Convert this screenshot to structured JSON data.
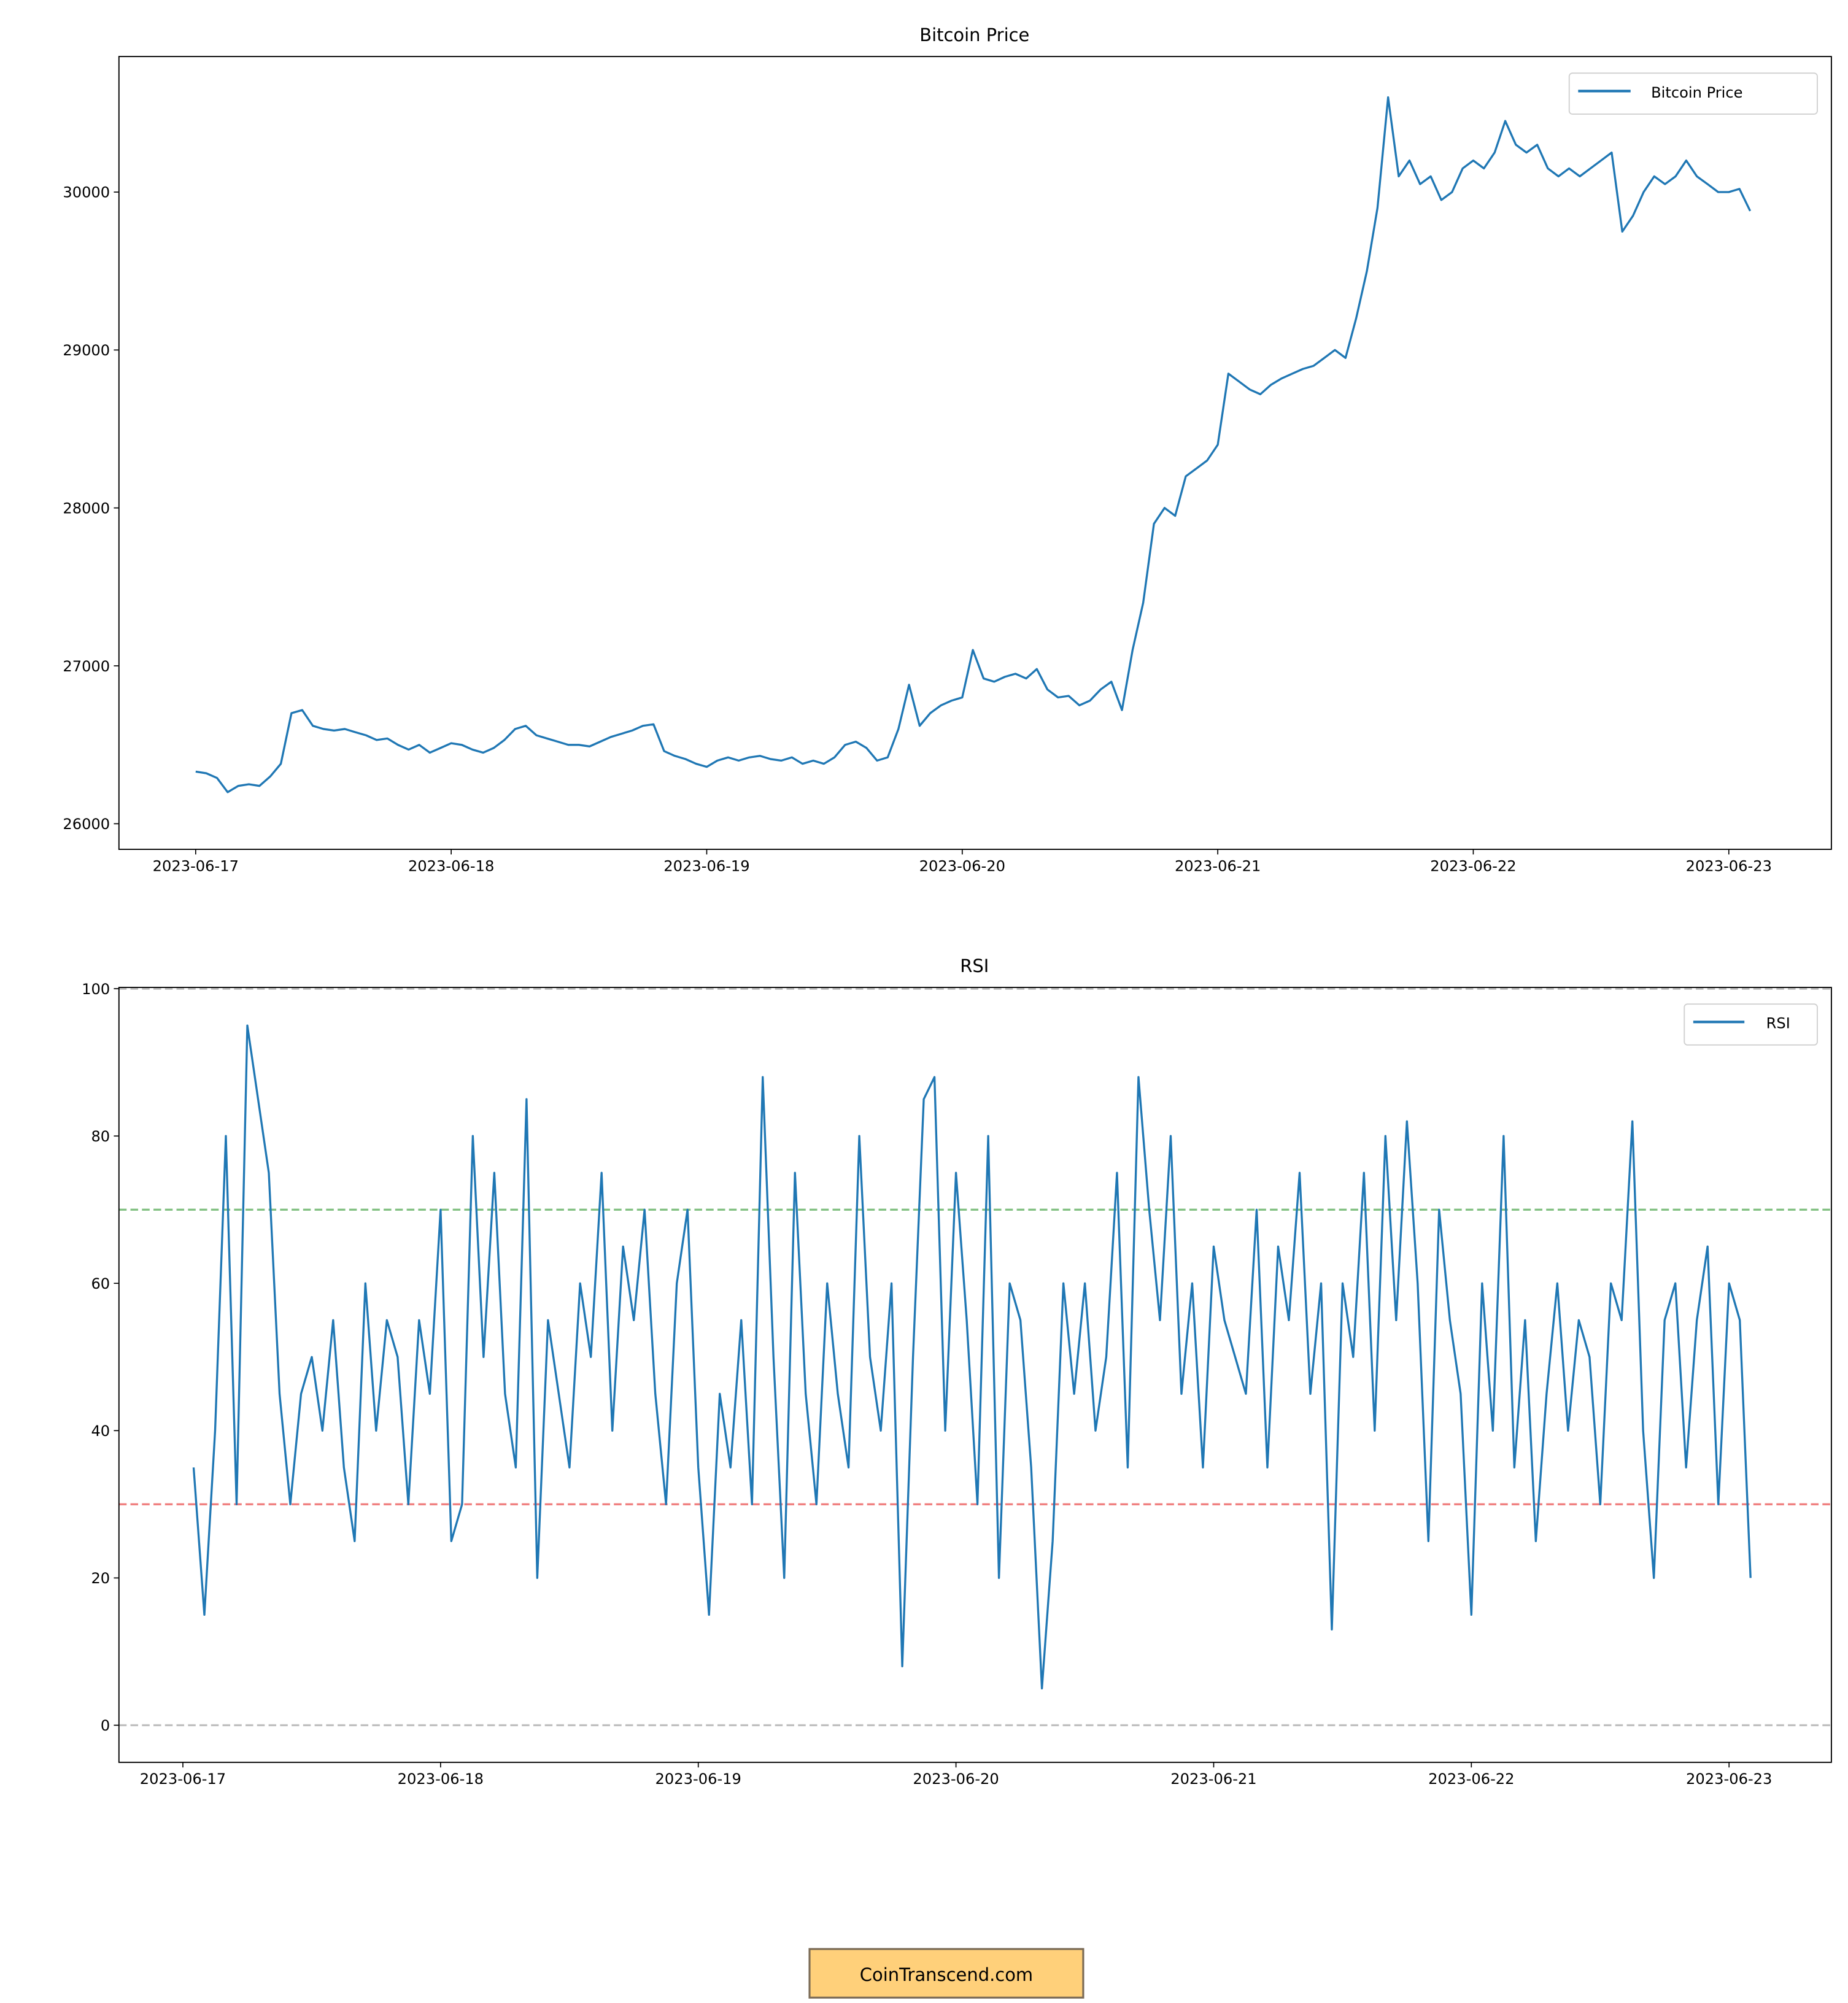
{
  "chart_data": [
    {
      "type": "line",
      "title": "Bitcoin Price",
      "xlabel": "",
      "ylabel": "",
      "x_ticks": [
        "2023-06-17",
        "2023-06-18",
        "2023-06-19",
        "2023-06-20",
        "2023-06-21",
        "2023-06-22",
        "2023-06-23"
      ],
      "y_ticks": [
        "26000",
        "27000",
        "28000",
        "29000",
        "30000"
      ],
      "ylim": [
        25840,
        30860
      ],
      "xlim": [
        "2023-06-16 16:48",
        "2023-06-23 09:36"
      ],
      "grid": false,
      "legend": "top-right",
      "series": [
        {
          "name": "Bitcoin Price",
          "color": "#1f77b4",
          "start": "2023-06-17 00:00",
          "interval": "1h",
          "values": [
            26330,
            26320,
            26290,
            26200,
            26240,
            26250,
            26240,
            26300,
            26380,
            26700,
            26720,
            26620,
            26600,
            26590,
            26600,
            26580,
            26560,
            26530,
            26540,
            26500,
            26470,
            26500,
            26450,
            26480,
            26510,
            26500,
            26470,
            26450,
            26480,
            26530,
            26600,
            26620,
            26560,
            26540,
            26520,
            26500,
            26500,
            26490,
            26520,
            26550,
            26570,
            26590,
            26620,
            26630,
            26460,
            26430,
            26410,
            26380,
            26360,
            26400,
            26420,
            26400,
            26420,
            26430,
            26410,
            26400,
            26420,
            26380,
            26400,
            26380,
            26420,
            26500,
            26520,
            26480,
            26400,
            26420,
            26600,
            26880,
            26620,
            26700,
            26750,
            26780,
            26800,
            27100,
            26920,
            26900,
            26930,
            26950,
            26920,
            26980,
            26850,
            26800,
            26810,
            26750,
            26780,
            26850,
            26900,
            26720,
            27100,
            27400,
            27900,
            28000,
            27950,
            28200,
            28250,
            28300,
            28400,
            28850,
            28800,
            28750,
            28720,
            28780,
            28820,
            28850,
            28880,
            28900,
            28950,
            29000,
            28950,
            29200,
            29500,
            29900,
            30600,
            30100,
            30200,
            30050,
            30100,
            29950,
            30000,
            30150,
            30200,
            30150,
            30250,
            30450,
            30300,
            30250,
            30300,
            30150,
            30100,
            30150,
            30100,
            30150,
            30200,
            30250,
            29750,
            29850,
            30000,
            30100,
            30050,
            30100,
            30200,
            30100,
            30050,
            30000,
            30000,
            30020,
            29880
          ]
        }
      ]
    },
    {
      "type": "line",
      "title": "RSI",
      "xlabel": "",
      "ylabel": "",
      "x_ticks": [
        "2023-06-17",
        "2023-06-18",
        "2023-06-19",
        "2023-06-20",
        "2023-06-21",
        "2023-06-22",
        "2023-06-23"
      ],
      "y_ticks": [
        "0",
        "20",
        "40",
        "60",
        "80",
        "100"
      ],
      "ylim": [
        -5,
        100.2
      ],
      "xlim": [
        "2023-06-16 18:03",
        "2023-06-23 09:32"
      ],
      "grid": false,
      "legend": "top-right",
      "reference_lines": [
        {
          "y": 100,
          "color": "#c0c0c0",
          "style": "dashed"
        },
        {
          "y": 70,
          "color": "#7fbf7f",
          "style": "dashed"
        },
        {
          "y": 30,
          "color": "#f08080",
          "style": "dashed"
        },
        {
          "y": 0,
          "color": "#c0c0c0",
          "style": "dashed"
        }
      ],
      "series": [
        {
          "name": "RSI",
          "color": "#1f77b4",
          "start": "2023-06-17 01:00",
          "interval": "1h",
          "values": [
            35,
            15,
            40,
            80,
            30,
            95,
            85,
            75,
            45,
            30,
            45,
            50,
            40,
            55,
            35,
            25,
            60,
            40,
            55,
            50,
            30,
            55,
            45,
            70,
            25,
            30,
            80,
            50,
            75,
            45,
            35,
            85,
            20,
            55,
            45,
            35,
            60,
            50,
            75,
            40,
            65,
            55,
            70,
            45,
            30,
            60,
            70,
            35,
            15,
            45,
            35,
            55,
            30,
            88,
            50,
            20,
            75,
            45,
            30,
            60,
            45,
            35,
            80,
            50,
            40,
            60,
            8,
            50,
            85,
            88,
            40,
            75,
            55,
            30,
            80,
            20,
            60,
            55,
            35,
            5,
            25,
            60,
            45,
            60,
            40,
            50,
            75,
            35,
            88,
            70,
            55,
            80,
            45,
            60,
            35,
            65,
            55,
            50,
            45,
            70,
            35,
            65,
            55,
            75,
            45,
            60,
            13,
            60,
            50,
            75,
            40,
            80,
            55,
            82,
            60,
            25,
            70,
            55,
            45,
            15,
            60,
            40,
            80,
            35,
            55,
            25,
            45,
            60,
            40,
            55,
            50,
            30,
            60,
            55,
            82,
            40,
            20,
            55,
            60,
            35,
            55,
            65,
            30,
            60,
            55,
            20
          ]
        }
      ]
    }
  ],
  "watermark": {
    "text": "CoinTranscend.com",
    "background": "#ffd07a",
    "border": "#7a6a55"
  }
}
